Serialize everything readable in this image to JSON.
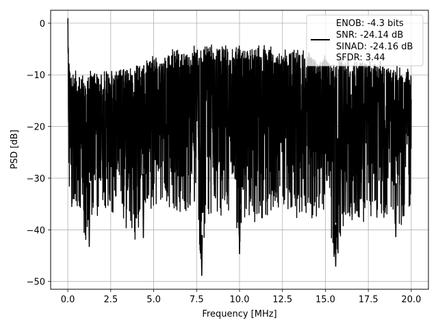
{
  "chart_data": {
    "type": "line",
    "title": "",
    "xlabel": "Frequency [MHz]",
    "ylabel": "PSD [dB]",
    "xlim": [
      -1.0,
      21.0
    ],
    "ylim": [
      -51.5,
      2.5
    ],
    "xticks": [
      0.0,
      2.5,
      5.0,
      7.5,
      10.0,
      12.5,
      15.0,
      17.5,
      20.0
    ],
    "xtick_labels": [
      "0.0",
      "2.5",
      "5.0",
      "7.5",
      "10.0",
      "12.5",
      "15.0",
      "17.5",
      "20.0"
    ],
    "yticks": [
      0,
      -10,
      -20,
      -30,
      -40,
      -50
    ],
    "ytick_labels": [
      "0",
      "−10",
      "−20",
      "−30",
      "−40",
      "−50"
    ],
    "grid": true,
    "legend_position": "top-right",
    "legend_entries": [
      "ENOB: -4.3 bits",
      "SNR: -24.14 dB",
      "SINAD: -24.16 dB",
      "SFDR: 3.44"
    ],
    "series": [
      {
        "color": "#000000",
        "x": [
          0.0,
          0.05,
          0.1,
          0.2,
          0.4,
          0.6,
          0.8,
          1.0,
          1.2,
          1.5,
          2.0,
          2.5,
          3.0,
          3.5,
          4.0,
          4.5,
          5.0,
          5.5,
          6.0,
          6.5,
          7.0,
          7.5,
          7.8,
          8.0,
          8.5,
          9.0,
          9.5,
          10.0,
          10.5,
          11.0,
          11.5,
          12.0,
          12.5,
          13.0,
          13.5,
          14.0,
          14.5,
          15.0,
          15.6,
          16.0,
          16.5,
          17.0,
          17.5,
          18.0,
          18.5,
          19.0,
          19.5,
          20.0
        ],
        "y_envelope_top": [
          0.0,
          -5,
          -8,
          -11,
          -10,
          -12,
          -11,
          -12,
          -10,
          -10,
          -11,
          -10,
          -9,
          -9,
          -8,
          -8,
          -7,
          -7,
          -6,
          -5,
          -6,
          -5,
          -5,
          -5,
          -5,
          -5,
          -5,
          -4,
          -5,
          -5,
          -4,
          -6,
          -6,
          -6,
          -6,
          -6,
          -7,
          -7,
          -8,
          -7,
          -8,
          -7,
          -8,
          -8,
          -9,
          -9,
          -10,
          -10
        ],
        "y_envelope_bottom": [
          -22,
          -30,
          -34,
          -36,
          -37,
          -37,
          -36,
          -43,
          -39,
          -38,
          -37,
          -37,
          -36,
          -41,
          -42,
          -36,
          -36,
          -35,
          -36,
          -37,
          -38,
          -35,
          -49,
          -40,
          -36,
          -38,
          -37,
          -44,
          -38,
          -39,
          -38,
          -37,
          -36,
          -37,
          -38,
          -38,
          -38,
          -37,
          -47,
          -40,
          -38,
          -39,
          -38,
          -38,
          -38,
          -39,
          -39,
          -36
        ],
        "deep_dips": [
          [
            1.25,
            -43.3
          ],
          [
            4.4,
            -41.6
          ],
          [
            7.8,
            -48.9
          ],
          [
            10.0,
            -44.7
          ],
          [
            15.6,
            -47.1
          ],
          [
            19.1,
            -41.4
          ]
        ]
      }
    ]
  }
}
